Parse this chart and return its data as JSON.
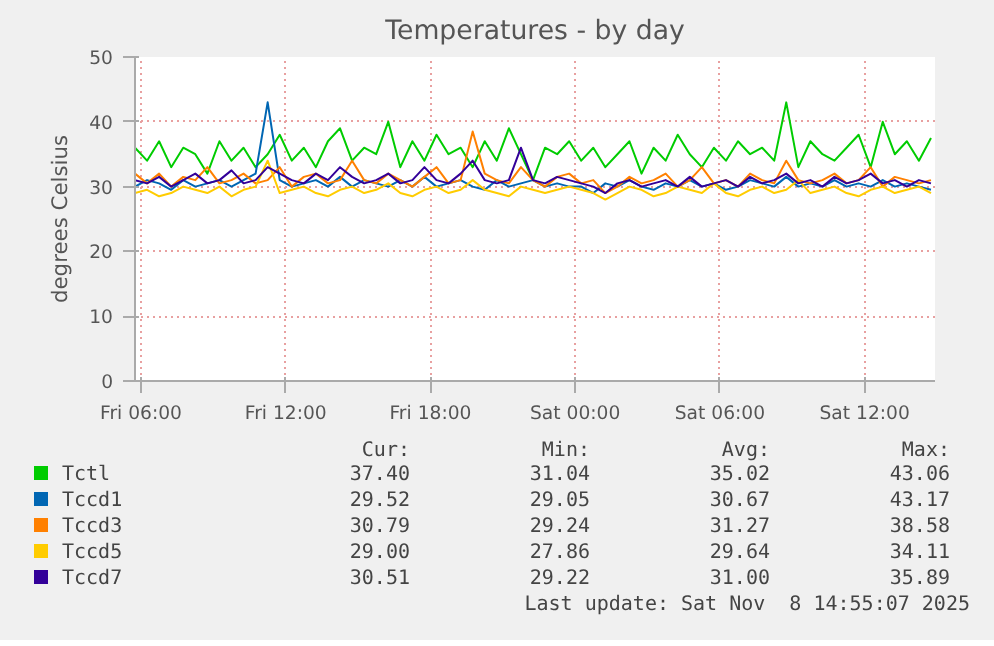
{
  "chart_data": {
    "type": "line",
    "title": "Temperatures - by day",
    "ylabel": "degrees Celsius",
    "x": [
      "2025-11-07T05:45",
      "2025-11-07T06:15",
      "2025-11-07T06:45",
      "2025-11-07T07:15",
      "2025-11-07T07:45",
      "2025-11-07T08:15",
      "2025-11-07T08:45",
      "2025-11-07T09:15",
      "2025-11-07T09:45",
      "2025-11-07T10:15",
      "2025-11-07T10:45",
      "2025-11-07T11:15",
      "2025-11-07T11:45",
      "2025-11-07T12:15",
      "2025-11-07T12:45",
      "2025-11-07T13:15",
      "2025-11-07T13:45",
      "2025-11-07T14:15",
      "2025-11-07T14:45",
      "2025-11-07T15:15",
      "2025-11-07T15:45",
      "2025-11-07T16:15",
      "2025-11-07T16:45",
      "2025-11-07T17:15",
      "2025-11-07T17:45",
      "2025-11-07T18:15",
      "2025-11-07T18:45",
      "2025-11-07T19:15",
      "2025-11-07T19:45",
      "2025-11-07T20:15",
      "2025-11-07T20:45",
      "2025-11-07T21:15",
      "2025-11-07T21:45",
      "2025-11-07T22:15",
      "2025-11-07T22:45",
      "2025-11-07T23:15",
      "2025-11-07T23:45",
      "2025-11-08T00:15",
      "2025-11-08T00:45",
      "2025-11-08T01:15",
      "2025-11-08T01:45",
      "2025-11-08T02:15",
      "2025-11-08T02:45",
      "2025-11-08T03:15",
      "2025-11-08T03:45",
      "2025-11-08T04:15",
      "2025-11-08T04:45",
      "2025-11-08T05:15",
      "2025-11-08T05:45",
      "2025-11-08T06:15",
      "2025-11-08T06:45",
      "2025-11-08T07:15",
      "2025-11-08T07:45",
      "2025-11-08T08:15",
      "2025-11-08T08:45",
      "2025-11-08T09:15",
      "2025-11-08T09:45",
      "2025-11-08T10:15",
      "2025-11-08T10:45",
      "2025-11-08T11:15",
      "2025-11-08T11:45",
      "2025-11-08T12:15",
      "2025-11-08T12:45",
      "2025-11-08T13:15",
      "2025-11-08T13:45",
      "2025-11-08T14:15",
      "2025-11-08T14:45"
    ],
    "series": [
      {
        "name": "Tctl",
        "color": "#00cc00",
        "values": [
          36,
          34,
          37,
          33,
          36,
          35,
          32,
          37,
          34,
          36,
          33,
          35,
          38,
          34,
          36,
          33,
          37,
          39,
          34,
          36,
          35,
          40,
          33,
          37,
          34,
          38,
          35,
          36,
          33,
          37,
          34,
          39,
          35,
          31,
          36,
          35,
          37,
          34,
          36,
          33,
          35,
          37,
          32,
          36,
          34,
          38,
          35,
          33,
          36,
          34,
          37,
          35,
          36,
          34,
          43,
          33,
          37,
          35,
          34,
          36,
          38,
          33,
          40,
          35,
          37,
          34,
          37.5
        ]
      },
      {
        "name": "Tccd1",
        "color": "#0066b3",
        "values": [
          30,
          31,
          30.5,
          29.5,
          31,
          30,
          30.5,
          31,
          30,
          31,
          32,
          43,
          31,
          30,
          30.5,
          31,
          30,
          31.5,
          30,
          31,
          30.5,
          30,
          31,
          30,
          31.5,
          30,
          30.5,
          31,
          30,
          29.5,
          31,
          30,
          30.5,
          31,
          30,
          30.5,
          30,
          30,
          29,
          30.5,
          30,
          31,
          30,
          29.5,
          30.5,
          30,
          31,
          30,
          30.5,
          29.5,
          30,
          31,
          30.5,
          30,
          31.5,
          30,
          30.5,
          30,
          31,
          30,
          30.5,
          30,
          31,
          30,
          30.5,
          30,
          29.5
        ]
      },
      {
        "name": "Tccd3",
        "color": "#ff8000",
        "values": [
          32,
          30.5,
          32,
          30,
          31.5,
          31,
          33,
          30.5,
          31,
          32,
          30.5,
          31,
          33,
          30,
          31.5,
          32,
          30.5,
          31,
          34,
          31,
          30.5,
          32,
          31,
          30,
          31.5,
          33,
          30.5,
          31,
          38.5,
          32,
          31,
          30.5,
          33,
          31,
          30,
          31.5,
          32,
          30.5,
          31,
          29,
          30,
          31.5,
          30.5,
          31,
          32,
          30,
          31,
          33,
          30.5,
          31,
          30,
          32,
          31,
          30.5,
          34,
          31,
          30.5,
          31,
          32,
          30.5,
          31,
          33,
          30,
          31.5,
          31,
          30.5,
          31
        ]
      },
      {
        "name": "Tccd5",
        "color": "#ffcc00",
        "values": [
          29,
          29.5,
          28.5,
          29,
          30,
          29.5,
          29,
          30,
          28.5,
          29.5,
          30,
          34,
          29,
          29.5,
          30,
          29,
          28.5,
          29.5,
          30,
          29,
          29.5,
          30.5,
          29,
          28.5,
          29.5,
          30,
          29,
          29.5,
          31,
          29.5,
          29,
          28.5,
          30,
          29.5,
          29,
          29.5,
          30,
          29.5,
          29,
          28,
          29,
          30,
          29.5,
          28.5,
          29,
          30,
          29.5,
          29,
          30.5,
          29,
          28.5,
          29.5,
          30,
          29,
          29.5,
          31,
          29,
          29.5,
          30,
          29,
          28.5,
          29.5,
          30,
          29,
          29.5,
          30,
          29
        ]
      },
      {
        "name": "Tccd7",
        "color": "#330099",
        "values": [
          31,
          30.5,
          31.5,
          30,
          31,
          32,
          30.5,
          31,
          32.5,
          30.5,
          31,
          33,
          32,
          31,
          30.5,
          32,
          31,
          33,
          31.5,
          30.5,
          31,
          32,
          30.5,
          31,
          33,
          31,
          30.5,
          32,
          34,
          31,
          30.5,
          31,
          36,
          31,
          30.5,
          31.5,
          31,
          30.5,
          30,
          29,
          30.5,
          31,
          30,
          30.5,
          31,
          30,
          31.5,
          30,
          30.5,
          31,
          30,
          31.5,
          30.5,
          31,
          32,
          30.5,
          31,
          30,
          31.5,
          30.5,
          31,
          32,
          30.5,
          31,
          30,
          31,
          30.5
        ]
      }
    ],
    "xlim": [
      "2025-11-07T05:45",
      "2025-11-08T14:55"
    ],
    "xticks": [
      {
        "value": "2025-11-07T06:00",
        "label": "Fri 06:00"
      },
      {
        "value": "2025-11-07T12:00",
        "label": "Fri 12:00"
      },
      {
        "value": "2025-11-07T18:00",
        "label": "Fri 18:00"
      },
      {
        "value": "2025-11-08T00:00",
        "label": "Sat 00:00"
      },
      {
        "value": "2025-11-08T06:00",
        "label": "Sat 06:00"
      },
      {
        "value": "2025-11-08T12:00",
        "label": "Sat 12:00"
      }
    ],
    "ylim": [
      0,
      50
    ],
    "yticks": [
      0,
      10,
      20,
      30,
      40,
      50
    ],
    "grid": true,
    "legend": "bottom",
    "marker": "none",
    "line_style": "solid",
    "annotations": [
      "Cur:",
      "Min:",
      "Avg:",
      "Max:",
      "37.40",
      "31.04",
      "35.02",
      "43.06",
      "29.52",
      "29.05",
      "30.67",
      "43.17",
      "30.79",
      "29.24",
      "31.27",
      "38.58",
      "29.00",
      "27.86",
      "29.64",
      "34.11",
      "30.51",
      "29.22",
      "31.00",
      "35.89",
      "Last update: Sat Nov  8 14:55:07 2025"
    ]
  }
}
